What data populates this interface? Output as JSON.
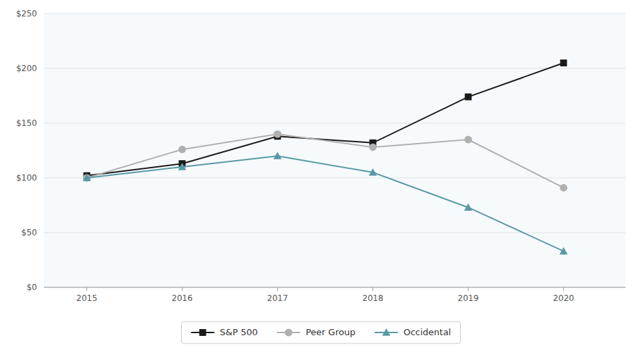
{
  "chart_data": {
    "type": "line",
    "x": [
      2015,
      2016,
      2017,
      2018,
      2019,
      2020
    ],
    "xlim": [
      2014.55,
      2020.65
    ],
    "xticks": [
      2015,
      2016,
      2017,
      2018,
      2019,
      2020
    ],
    "ylim": [
      0,
      250
    ],
    "yticks": [
      {
        "value": 0,
        "label": "$0"
      },
      {
        "value": 50,
        "label": "$50"
      },
      {
        "value": 100,
        "label": "$100"
      },
      {
        "value": 150,
        "label": "$150"
      },
      {
        "value": 200,
        "label": "$200"
      },
      {
        "value": 250,
        "label": "$250"
      }
    ],
    "grid": true,
    "legend": "bottom",
    "series": [
      {
        "name": "S&P 500",
        "color": "#1a1a1a",
        "marker": "square",
        "values": [
          102,
          113,
          138,
          132,
          174,
          205
        ]
      },
      {
        "name": "Peer Group",
        "color": "#b0b0b0",
        "marker": "circle",
        "values": [
          100,
          126,
          140,
          128,
          135,
          91
        ]
      },
      {
        "name": "Occidental",
        "color": "#5899a5",
        "marker": "triangle",
        "values": [
          100,
          110,
          120,
          105,
          73,
          33
        ]
      }
    ]
  }
}
